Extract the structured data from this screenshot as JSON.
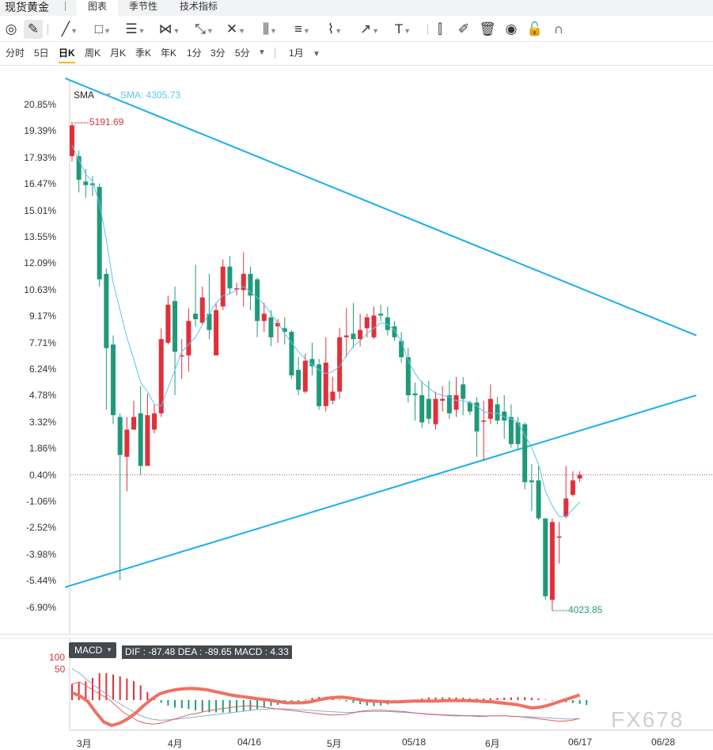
{
  "app": {
    "title": "现货黄金"
  },
  "tabs": [
    {
      "label": "图表",
      "active": true
    },
    {
      "label": "季节性",
      "active": false
    },
    {
      "label": "技术指标",
      "active": false
    }
  ],
  "toolbar": {
    "tools": [
      {
        "name": "cursor-icon",
        "glyph": "◎",
        "caret": false
      },
      {
        "name": "pencil-icon",
        "glyph": "✎",
        "caret": false,
        "active": true
      },
      {
        "name": "line-tool-icon",
        "glyph": "╱",
        "caret": true
      },
      {
        "name": "rectangle-tool-icon",
        "glyph": "□",
        "caret": true
      },
      {
        "name": "parallel-lines-icon",
        "glyph": "☰",
        "caret": true
      },
      {
        "name": "polyline-icon",
        "glyph": "⋈",
        "caret": true
      },
      {
        "name": "pattern-tool-icon",
        "glyph": "⤡",
        "caret": true
      },
      {
        "name": "cross-lines-icon",
        "glyph": "✕",
        "caret": true
      },
      {
        "name": "grid-lines-icon",
        "glyph": "⫼",
        "caret": true
      },
      {
        "name": "fibonacci-icon",
        "glyph": "≡",
        "caret": true
      },
      {
        "name": "brush-icon",
        "glyph": "⌇",
        "caret": true
      },
      {
        "name": "arrow-tool-icon",
        "glyph": "↗",
        "caret": true
      },
      {
        "name": "text-tool-icon",
        "glyph": "T",
        "caret": true
      },
      {
        "name": "candles-icon",
        "glyph": "⫿",
        "caret": false
      },
      {
        "name": "edit-icon",
        "glyph": "✐",
        "caret": false
      },
      {
        "name": "trash-icon",
        "glyph": "🗑",
        "caret": false
      },
      {
        "name": "eye-icon",
        "glyph": "◉",
        "caret": false
      },
      {
        "name": "lock-icon",
        "glyph": "🔓",
        "caret": false
      },
      {
        "name": "magnet-icon",
        "glyph": "∩",
        "caret": false
      }
    ]
  },
  "periods": [
    {
      "label": "分时",
      "active": false
    },
    {
      "label": "5日",
      "active": false
    },
    {
      "label": "日K",
      "active": true
    },
    {
      "label": "周K",
      "active": false
    },
    {
      "label": "月K",
      "active": false
    },
    {
      "label": "季K",
      "active": false
    },
    {
      "label": "年K",
      "active": false
    },
    {
      "label": "1分",
      "active": false
    },
    {
      "label": "3分",
      "active": false
    },
    {
      "label": "5分",
      "active": false
    }
  ],
  "period_more": "▼",
  "range": {
    "label": "1月",
    "caret": "▼"
  },
  "legend": {
    "indicator": "SMA",
    "caret": "▼",
    "value_text": "SMA: 4305.73"
  },
  "markers": {
    "high": "-----5191.69",
    "low": "-----4023.85"
  },
  "macd": {
    "label": "MACD",
    "caret": "▼",
    "values_text": "DIF : -87.48   DEA : -89.65   MACD : 4.33",
    "scale_100": "100",
    "scale_50": "50"
  },
  "watermark": "FX678",
  "colors": {
    "up": "#e0303a",
    "down": "#1f9a78",
    "sma": "#5bc6ee",
    "trendline": "#19aef0",
    "macd_thick": "#f07060",
    "dif": "#e06060",
    "dea": "#8aaed0",
    "reference_line": "#c0485a"
  },
  "chart_data": {
    "type": "candlestick",
    "y_axis": {
      "unit": "%",
      "ticks": [
        20.85,
        19.39,
        17.93,
        16.47,
        15.01,
        13.55,
        12.09,
        10.63,
        9.17,
        7.71,
        6.24,
        4.78,
        3.32,
        1.86,
        0.4,
        -1.06,
        -2.52,
        -3.98,
        -5.44,
        -6.9
      ],
      "tick_labels": [
        "20.85%",
        "19.39%",
        "17.93%",
        "16.47%",
        "15.01%",
        "13.55%",
        "12.09%",
        "10.63%",
        "9.17%",
        "7.71%",
        "6.24%",
        "4.78%",
        "3.32%",
        "1.86%",
        "0.40%",
        "-1.06%",
        "-2.52%",
        "-3.98%",
        "-5.44%",
        "-6.90%"
      ],
      "reference_level": 0.4
    },
    "x_axis": {
      "tick_labels": [
        "3月",
        "4月",
        "04/16",
        "5月",
        "05/18",
        "6月",
        "06/17",
        "06/28"
      ]
    },
    "price_markers": {
      "high": 5191.69,
      "low": 4023.85
    },
    "candles": [
      {
        "o": 18.0,
        "c": 19.7,
        "h": 19.9,
        "l": 17.7
      },
      {
        "o": 18.0,
        "c": 16.7,
        "h": 18.3,
        "l": 16.0
      },
      {
        "o": 16.6,
        "c": 16.4,
        "h": 17.3,
        "l": 15.7
      },
      {
        "o": 16.5,
        "c": 16.4,
        "h": 16.9,
        "l": 15.8
      },
      {
        "o": 16.3,
        "c": 11.2,
        "h": 16.5,
        "l": 10.8
      },
      {
        "o": 11.5,
        "c": 7.4,
        "h": 11.8,
        "l": 4.0
      },
      {
        "o": 7.6,
        "c": 3.7,
        "h": 8.1,
        "l": 3.2
      },
      {
        "o": 3.6,
        "c": 1.5,
        "h": 3.8,
        "l": -5.4
      },
      {
        "o": 1.4,
        "c": 2.9,
        "h": 3.6,
        "l": -0.5
      },
      {
        "o": 2.9,
        "c": 3.6,
        "h": 4.5,
        "l": 3.0
      },
      {
        "o": 3.8,
        "c": 0.9,
        "h": 5.3,
        "l": 0.4
      },
      {
        "o": 0.9,
        "c": 3.7,
        "h": 4.9,
        "l": 0.9
      },
      {
        "o": 2.9,
        "c": 3.8,
        "h": 4.3,
        "l": 2.7
      },
      {
        "o": 3.8,
        "c": 7.9,
        "h": 8.5,
        "l": 3.6
      },
      {
        "o": 7.7,
        "c": 9.8,
        "h": 10.3,
        "l": 7.6
      },
      {
        "o": 10.0,
        "c": 7.2,
        "h": 10.8,
        "l": 4.8
      },
      {
        "o": 7.0,
        "c": 7.0,
        "h": 7.9,
        "l": 5.7
      },
      {
        "o": 7.0,
        "c": 8.9,
        "h": 9.6,
        "l": 6.1
      },
      {
        "o": 9.3,
        "c": 9.0,
        "h": 12.0,
        "l": 8.6
      },
      {
        "o": 8.8,
        "c": 10.2,
        "h": 10.8,
        "l": 8.7
      },
      {
        "o": 9.3,
        "c": 8.4,
        "h": 11.5,
        "l": 7.9
      },
      {
        "o": 7.0,
        "c": 9.5,
        "h": 9.9,
        "l": 7.0
      },
      {
        "o": 9.7,
        "c": 11.9,
        "h": 12.3,
        "l": 9.5
      },
      {
        "o": 11.9,
        "c": 10.7,
        "h": 12.5,
        "l": 10.4
      },
      {
        "o": 10.7,
        "c": 10.7,
        "h": 11.0,
        "l": 10.3
      },
      {
        "o": 10.6,
        "c": 11.5,
        "h": 12.7,
        "l": 9.7
      },
      {
        "o": 11.5,
        "c": 10.3,
        "h": 11.9,
        "l": 9.5
      },
      {
        "o": 11.2,
        "c": 8.9,
        "h": 11.3,
        "l": 8.0
      },
      {
        "o": 8.9,
        "c": 9.3,
        "h": 9.9,
        "l": 8.3
      },
      {
        "o": 9.1,
        "c": 8.0,
        "h": 9.5,
        "l": 7.5
      },
      {
        "o": 8.6,
        "c": 8.8,
        "h": 9.0,
        "l": 7.7
      },
      {
        "o": 8.5,
        "c": 8.3,
        "h": 9.1,
        "l": 7.6
      },
      {
        "o": 8.3,
        "c": 5.9,
        "h": 8.4,
        "l": 5.7
      },
      {
        "o": 6.2,
        "c": 5.1,
        "h": 6.9,
        "l": 4.8
      },
      {
        "o": 5.0,
        "c": 6.7,
        "h": 7.1,
        "l": 4.9
      },
      {
        "o": 6.8,
        "c": 6.4,
        "h": 7.7,
        "l": 5.9
      },
      {
        "o": 6.5,
        "c": 4.2,
        "h": 6.8,
        "l": 4.0
      },
      {
        "o": 4.2,
        "c": 6.6,
        "h": 8.0,
        "l": 3.9
      },
      {
        "o": 4.5,
        "c": 5.0,
        "h": 5.8,
        "l": 4.3
      },
      {
        "o": 5.0,
        "c": 8.0,
        "h": 8.5,
        "l": 4.6
      },
      {
        "o": 8.0,
        "c": 8.1,
        "h": 9.6,
        "l": 6.9
      },
      {
        "o": 8.2,
        "c": 7.9,
        "h": 9.9,
        "l": 7.4
      },
      {
        "o": 7.9,
        "c": 8.4,
        "h": 9.3,
        "l": 7.5
      },
      {
        "o": 8.5,
        "c": 9.1,
        "h": 9.3,
        "l": 8.0
      },
      {
        "o": 8.0,
        "c": 9.2,
        "h": 9.7,
        "l": 7.9
      },
      {
        "o": 9.3,
        "c": 9.2,
        "h": 9.8,
        "l": 8.9
      },
      {
        "o": 9.1,
        "c": 8.4,
        "h": 9.7,
        "l": 8.1
      },
      {
        "o": 8.6,
        "c": 8.0,
        "h": 8.9,
        "l": 7.8
      },
      {
        "o": 7.8,
        "c": 6.9,
        "h": 8.3,
        "l": 6.6
      },
      {
        "o": 6.9,
        "c": 4.8,
        "h": 7.4,
        "l": 4.4
      },
      {
        "o": 4.9,
        "c": 4.8,
        "h": 5.5,
        "l": 3.4
      },
      {
        "o": 4.8,
        "c": 3.3,
        "h": 5.6,
        "l": 3.0
      },
      {
        "o": 4.6,
        "c": 3.5,
        "h": 5.6,
        "l": 3.2
      },
      {
        "o": 3.2,
        "c": 4.6,
        "h": 5.0,
        "l": 2.9
      },
      {
        "o": 4.5,
        "c": 4.6,
        "h": 5.3,
        "l": 3.9
      },
      {
        "o": 4.8,
        "c": 3.8,
        "h": 5.6,
        "l": 3.5
      },
      {
        "o": 4.0,
        "c": 4.8,
        "h": 5.8,
        "l": 3.6
      },
      {
        "o": 5.4,
        "c": 4.6,
        "h": 5.8,
        "l": 3.7
      },
      {
        "o": 4.4,
        "c": 3.9,
        "h": 4.5,
        "l": 3.7
      },
      {
        "o": 4.4,
        "c": 2.8,
        "h": 4.7,
        "l": 1.4
      },
      {
        "o": 3.4,
        "c": 3.4,
        "h": 4.5,
        "l": 1.2
      },
      {
        "o": 3.5,
        "c": 4.6,
        "h": 5.4,
        "l": 3.2
      },
      {
        "o": 4.3,
        "c": 3.4,
        "h": 4.7,
        "l": 3.2
      },
      {
        "o": 3.9,
        "c": 3.4,
        "h": 4.8,
        "l": 2.4
      },
      {
        "o": 3.6,
        "c": 2.1,
        "h": 4.3,
        "l": 1.9
      },
      {
        "o": 3.3,
        "c": 2.1,
        "h": 3.6,
        "l": 1.8
      },
      {
        "o": 3.2,
        "c": 0.0,
        "h": 3.3,
        "l": -0.4
      },
      {
        "o": 0.1,
        "c": 0.0,
        "h": 1.0,
        "l": -1.6
      },
      {
        "o": 0.1,
        "c": -2.0,
        "h": 0.9,
        "l": -2.1
      },
      {
        "o": -2.0,
        "c": -6.3,
        "h": -2.0,
        "l": -6.5
      },
      {
        "o": -6.5,
        "c": -2.2,
        "h": -2.0,
        "l": -7.1
      },
      {
        "o": -3.0,
        "c": -3.0,
        "h": -2.2,
        "l": -4.5
      },
      {
        "o": -1.9,
        "c": -0.9,
        "h": 0.9,
        "l": -2.0
      },
      {
        "o": -0.7,
        "c": 0.1,
        "h": 0.6,
        "l": -0.8
      },
      {
        "o": 0.2,
        "c": 0.4,
        "h": 0.6,
        "l": 0.0
      }
    ],
    "sma": [
      18.6,
      17.8,
      17.0,
      16.6,
      15.4,
      13.4,
      11.0,
      9.5,
      8.0,
      6.8,
      5.5,
      5.0,
      4.3,
      4.2,
      5.2,
      6.2,
      7.2,
      7.6,
      8.0,
      8.7,
      9.3,
      9.9,
      10.3,
      10.4,
      10.6,
      10.8,
      10.5,
      10.2,
      9.8,
      9.3,
      8.8,
      8.2,
      7.7,
      7.2,
      6.8,
      6.5,
      6.2,
      6.0,
      6.1,
      6.4,
      7.0,
      7.5,
      7.8,
      8.2,
      8.5,
      8.8,
      8.7,
      8.4,
      7.8,
      6.7,
      6.0,
      5.5,
      5.2,
      4.9,
      4.8,
      4.7,
      4.5,
      4.5,
      4.4,
      4.2,
      3.9,
      3.8,
      3.8,
      3.6,
      3.5,
      3.3,
      2.6,
      1.9,
      1.0,
      -0.5,
      -1.3,
      -1.9,
      -1.9,
      -1.5,
      -1.1
    ],
    "trendlines": [
      {
        "from": {
          "x": -1,
          "y": 22.3
        },
        "to": {
          "x": 91,
          "y": 8.1
        }
      },
      {
        "from": {
          "x": -1,
          "y": -5.8
        },
        "to": {
          "x": 91,
          "y": 4.8
        }
      }
    ],
    "macd_indicator": {
      "scale": [
        100,
        50
      ],
      "hist": [
        60,
        65,
        70,
        82,
        100,
        100,
        95,
        88,
        80,
        70,
        55,
        30,
        10,
        -10,
        -20,
        -28,
        -30,
        -33,
        -38,
        -42,
        -45,
        -46,
        -46,
        -46,
        -45,
        -42,
        -38,
        -33,
        -28,
        -22,
        -18,
        -14,
        -8,
        -4,
        2,
        8,
        12,
        12,
        8,
        2,
        -5,
        -10,
        -15,
        -20,
        -22,
        -20,
        -16,
        -10,
        -6,
        -2,
        2,
        6,
        10,
        10,
        10,
        10,
        10,
        9,
        7,
        6,
        6,
        7,
        8,
        9,
        10,
        11,
        11,
        9,
        6,
        2,
        -2,
        -5,
        -8,
        -11,
        -14,
        -18
      ],
      "dif": [
        95,
        100,
        90,
        80,
        70,
        60,
        45,
        30,
        20,
        10,
        5,
        3,
        5,
        10,
        15,
        20,
        25,
        28,
        32,
        35,
        38,
        40,
        42,
        44,
        45,
        44,
        42,
        40,
        38,
        36,
        34,
        32,
        30,
        28,
        26,
        24,
        24,
        25,
        28,
        32,
        34,
        35,
        35,
        34,
        33,
        32,
        30,
        28,
        26,
        25,
        24,
        23,
        22,
        22,
        22,
        21,
        21,
        22,
        22,
        22,
        21,
        20,
        18,
        16,
        14,
        12,
        10,
        10,
        12,
        16
      ],
      "dea": [
        130,
        120,
        105,
        92,
        80,
        68,
        55,
        45,
        35,
        25,
        18,
        14,
        12,
        13,
        14,
        16,
        18,
        20,
        22,
        24,
        26,
        28,
        30,
        32,
        34,
        36,
        37,
        38,
        38,
        38,
        37,
        36,
        35,
        34,
        33,
        32,
        31,
        30,
        30,
        31,
        32,
        32,
        32,
        32,
        31,
        30,
        29,
        28,
        27,
        26,
        25,
        24,
        24,
        23,
        23,
        23,
        22,
        22,
        22,
        22,
        21,
        20,
        20,
        19,
        18,
        17,
        16,
        15,
        15,
        16
      ],
      "macd_line": [
        75,
        68,
        55,
        30,
        8,
        0,
        5,
        15,
        28,
        45,
        60,
        72,
        78,
        82,
        84,
        85,
        84,
        82,
        78,
        74,
        70,
        67,
        65,
        62,
        60,
        58,
        55,
        52,
        52,
        52,
        54,
        58,
        62,
        64,
        65,
        63,
        60,
        57,
        56,
        55,
        54,
        54,
        55,
        56,
        56,
        56,
        56,
        57,
        57,
        57,
        57,
        56,
        55,
        54,
        52,
        50,
        48,
        44,
        40,
        42,
        46,
        52,
        58,
        64,
        70
      ]
    }
  }
}
